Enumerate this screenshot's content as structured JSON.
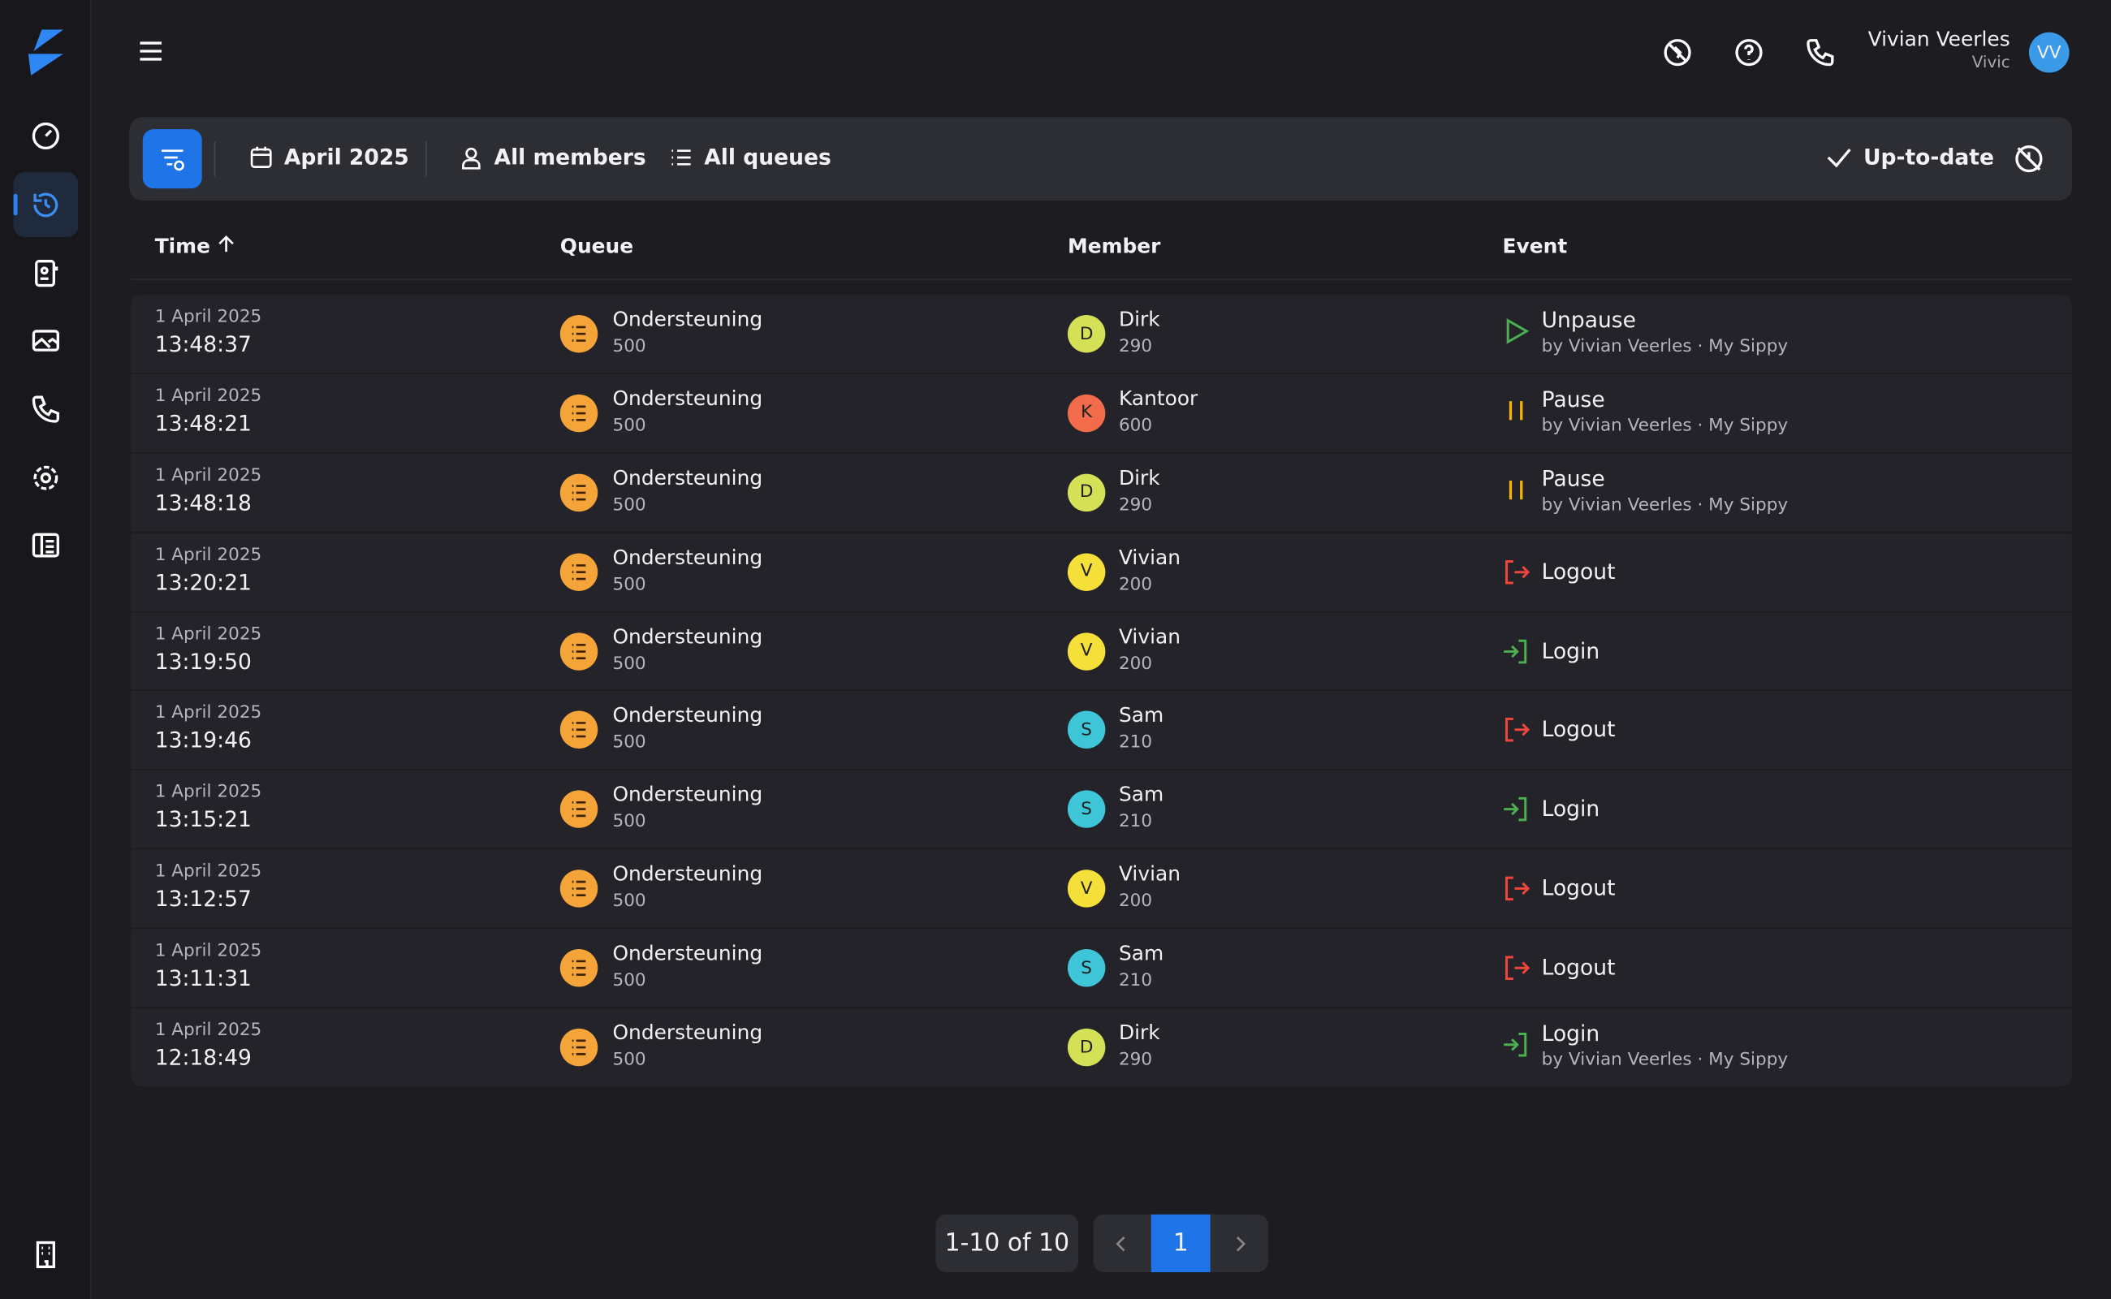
{
  "header": {
    "user_name": "Vivian Veerles",
    "user_org": "Vivic",
    "initials": "VV"
  },
  "toolbar": {
    "month": "April 2025",
    "members": "All members",
    "queues": "All queues",
    "status": "Up-to-date"
  },
  "table": {
    "columns": [
      "Time",
      "Queue",
      "Member",
      "Event"
    ],
    "rows": [
      {
        "date": "1 April 2025",
        "time": "13:48:37",
        "queue": "Ondersteuning",
        "queue_number": "500",
        "initial": "D",
        "member": "Dirk",
        "member_number": "290",
        "avatar_color": "#d4e157",
        "event": "Unpause",
        "event_kind": "unpause",
        "by": "by Vivian Veerles · My Sippy"
      },
      {
        "date": "1 April 2025",
        "time": "13:48:21",
        "queue": "Ondersteuning",
        "queue_number": "500",
        "initial": "K",
        "member": "Kantoor",
        "member_number": "600",
        "avatar_color": "#f26b4a",
        "event": "Pause",
        "event_kind": "pause",
        "by": "by Vivian Veerles · My Sippy"
      },
      {
        "date": "1 April 2025",
        "time": "13:48:18",
        "queue": "Ondersteuning",
        "queue_number": "500",
        "initial": "D",
        "member": "Dirk",
        "member_number": "290",
        "avatar_color": "#d4e157",
        "event": "Pause",
        "event_kind": "pause",
        "by": "by Vivian Veerles · My Sippy"
      },
      {
        "date": "1 April 2025",
        "time": "13:20:21",
        "queue": "Ondersteuning",
        "queue_number": "500",
        "initial": "V",
        "member": "Vivian",
        "member_number": "200",
        "avatar_color": "#f5e03a",
        "event": "Logout",
        "event_kind": "logout"
      },
      {
        "date": "1 April 2025",
        "time": "13:19:50",
        "queue": "Ondersteuning",
        "queue_number": "500",
        "initial": "V",
        "member": "Vivian",
        "member_number": "200",
        "avatar_color": "#f5e03a",
        "event": "Login",
        "event_kind": "login"
      },
      {
        "date": "1 April 2025",
        "time": "13:19:46",
        "queue": "Ondersteuning",
        "queue_number": "500",
        "initial": "S",
        "member": "Sam",
        "member_number": "210",
        "avatar_color": "#3ec6d8",
        "event": "Logout",
        "event_kind": "logout"
      },
      {
        "date": "1 April 2025",
        "time": "13:15:21",
        "queue": "Ondersteuning",
        "queue_number": "500",
        "initial": "S",
        "member": "Sam",
        "member_number": "210",
        "avatar_color": "#3ec6d8",
        "event": "Login",
        "event_kind": "login"
      },
      {
        "date": "1 April 2025",
        "time": "13:12:57",
        "queue": "Ondersteuning",
        "queue_number": "500",
        "initial": "V",
        "member": "Vivian",
        "member_number": "200",
        "avatar_color": "#f5e03a",
        "event": "Logout",
        "event_kind": "logout"
      },
      {
        "date": "1 April 2025",
        "time": "13:11:31",
        "queue": "Ondersteuning",
        "queue_number": "500",
        "initial": "S",
        "member": "Sam",
        "member_number": "210",
        "avatar_color": "#3ec6d8",
        "event": "Logout",
        "event_kind": "logout"
      },
      {
        "date": "1 April 2025",
        "time": "12:18:49",
        "queue": "Ondersteuning",
        "queue_number": "500",
        "initial": "D",
        "member": "Dirk",
        "member_number": "290",
        "avatar_color": "#d4e157",
        "event": "Login",
        "event_kind": "login",
        "by": "by Vivian Veerles · My Sippy"
      }
    ]
  },
  "pagination": {
    "range": "1-10 of 10",
    "page": "1"
  }
}
